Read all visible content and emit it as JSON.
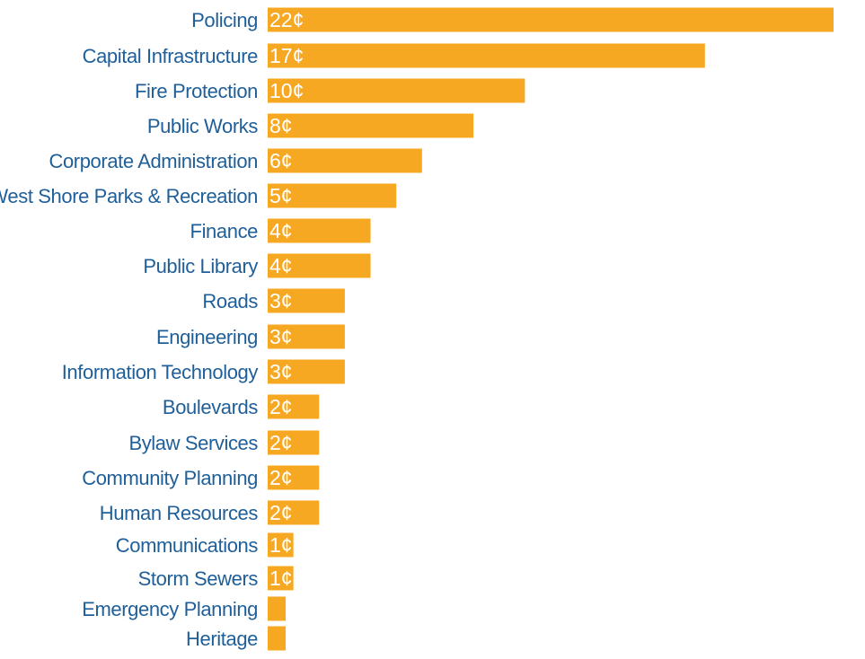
{
  "colors": {
    "bar": "#f7a823",
    "label": "#1f5f99",
    "value_text": "#ffffff"
  },
  "chart_data": {
    "type": "bar",
    "orientation": "horizontal",
    "categories": [
      "Policing",
      "Capital Infrastructure",
      "Fire Protection",
      "Public Works",
      "Corporate Administration",
      "West Shore Parks & Recreation",
      "Finance",
      "Public Library",
      "Roads",
      "Engineering",
      "Information Technology",
      "Boulevards",
      "Bylaw Services",
      "Community Planning",
      "Human Resources",
      "Communications",
      "Storm Sewers",
      "Emergency Planning",
      "Heritage"
    ],
    "values": [
      22,
      17,
      10,
      8,
      6,
      5,
      4,
      4,
      3,
      3,
      3,
      2,
      2,
      2,
      2,
      1,
      1,
      0.7,
      0.7
    ],
    "value_labels": [
      "22¢",
      "17¢",
      "10¢",
      "8¢",
      "6¢",
      "5¢",
      "4¢",
      "4¢",
      "3¢",
      "3¢",
      "3¢",
      "2¢",
      "2¢",
      "2¢",
      "2¢",
      "1¢",
      "1¢",
      "",
      ""
    ],
    "unit": "¢",
    "xlim": [
      0,
      22
    ],
    "grid": false,
    "legend": "none"
  }
}
